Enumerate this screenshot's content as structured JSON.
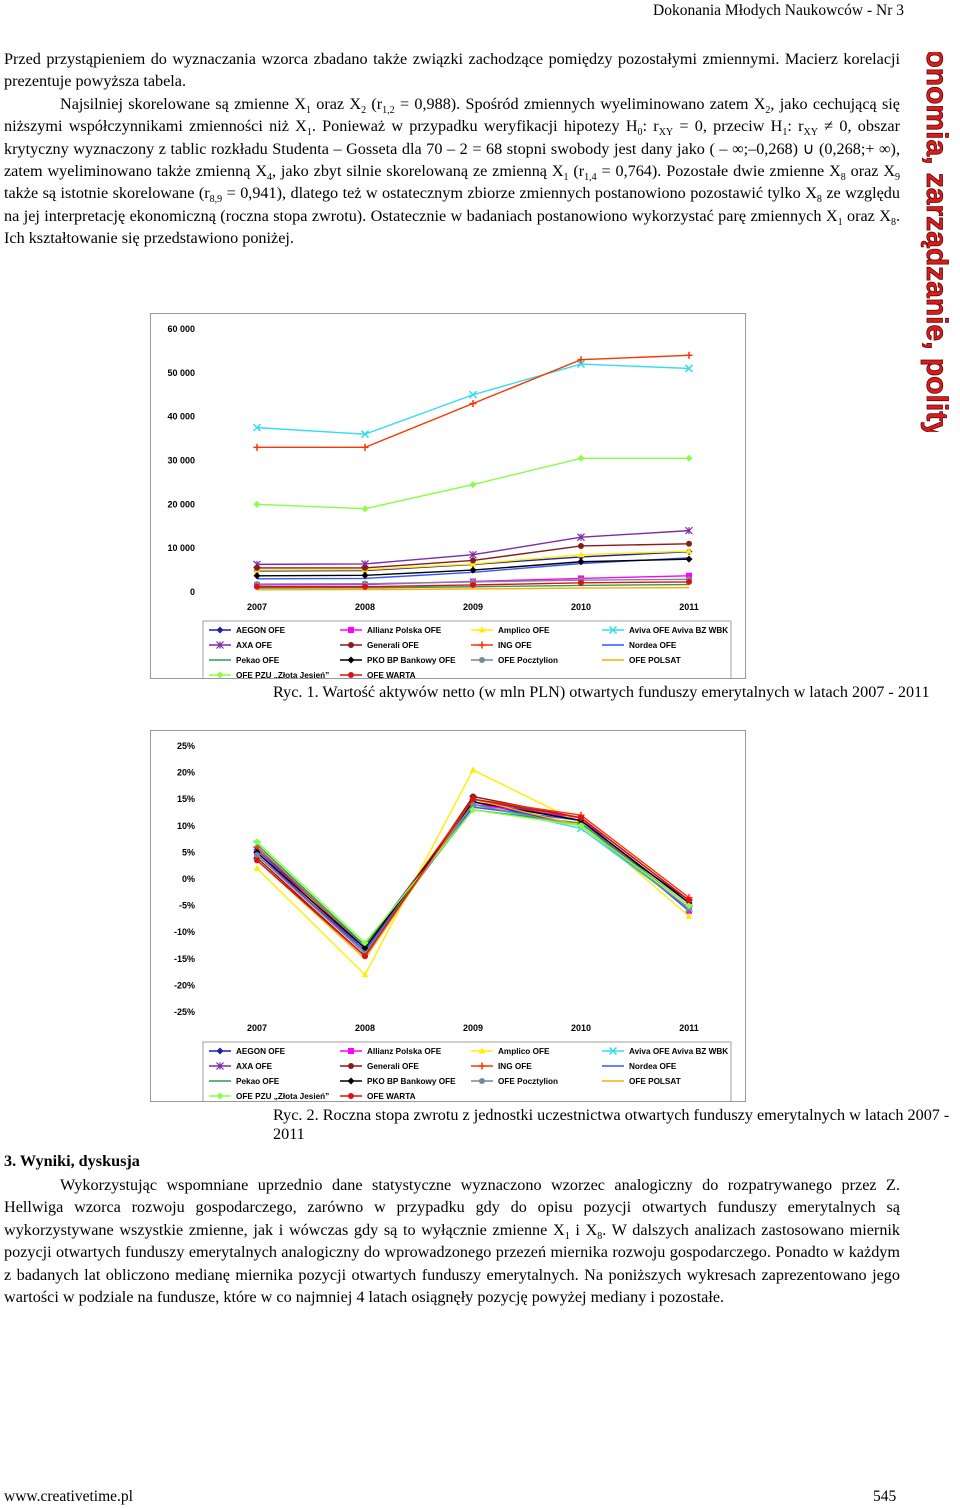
{
  "header": {
    "journal": "Dokonania Młodych Naukowców - Nr 3"
  },
  "paragraph1": {
    "l1": "Przed przystąpieniem do wyznaczania wzorca zbadano także związki zachodzące pomiędzy pozostałymi zmiennymi. Macierz korelacji prezentuje powyższa tabela.",
    "l2a": "Najsilniej skorelowane są zmienne X",
    "l2b": "1",
    "l2c": " oraz X",
    "l2d": "2",
    "l2e": " (r",
    "l2f": "1,2",
    "l2g": " = 0,988). Spośród zmiennych wyeliminowano zatem X",
    "l2h": "2",
    "l2i": ", jako cechującą się niższymi współczynnikami zmienności niż X",
    "l2j": "1",
    "l2k": ". Ponieważ w przypadku weryfikacji hipotezy H",
    "l2l": "0",
    "l2m": ": r",
    "l2n": "XY",
    "l2o": " = 0, przeciw H",
    "l2p": "1",
    "l2q": ": r",
    "l2r": "XY",
    "l2s": " ≠ 0, obszar krytyczny wyznaczony z tablic rozkładu Studenta – Gosseta dla 70 – 2 = 68 stopni swobody jest dany jako ",
    "interval": "( – ∞;–0,268) ∪ (0,268;+ ∞)",
    "l2t": ", zatem wyeliminowano także zmienną X",
    "l2u": "4",
    "l2v": ", jako zbyt silnie skorelowaną ze zmienną X",
    "l2w": "1",
    "l2x": " (r",
    "l2y": "1,4",
    "l2z": " = 0,764). Pozostałe dwie zmienne X",
    "m1": "8",
    "m2": " oraz X",
    "m3": "9",
    "m4": " także są istotnie skorelowane (r",
    "m5": "8,9",
    "m6": " = 0,941), dlatego też w ostatecznym zbiorze zmiennych postanowiono pozostawić tylko X",
    "m7": "8",
    "m8": " ze względu na jej interpretację ekonomiczną (roczna stopa zwrotu). Ostatecznie w badaniach postanowiono wykorzystać parę zmiennych X",
    "m9": "1",
    "m10": " oraz X",
    "m11": "8",
    "m12": ". Ich kształtowanie się przedstawiono poniżej."
  },
  "side_banner": {
    "text": "Ekonomia, zarządzanie, polityka",
    "color": "#d21f1f"
  },
  "legend_items": [
    {
      "name": "AEGON OFE",
      "color": "#1f1fa8",
      "marker": "diamond"
    },
    {
      "name": "Allianz Polska OFE",
      "color": "#ff00ff",
      "marker": "square"
    },
    {
      "name": "Amplico OFE",
      "color": "#ffee00",
      "marker": "triangle"
    },
    {
      "name": "Aviva OFE Aviva BZ WBK",
      "color": "#33ddee",
      "marker": "x"
    },
    {
      "name": "AXA OFE",
      "color": "#7b2aa8",
      "marker": "star"
    },
    {
      "name": "Generali OFE",
      "color": "#8b1a1a",
      "marker": "circle"
    },
    {
      "name": "ING OFE",
      "color": "#ff3300",
      "marker": "plus"
    },
    {
      "name": "Nordea OFE",
      "color": "#3355ff",
      "marker": "line"
    },
    {
      "name": "Pekao OFE",
      "color": "#2e9e4a",
      "marker": "line"
    },
    {
      "name": "PKO BP Bankowy OFE",
      "color": "#000000",
      "marker": "diamond"
    },
    {
      "name": "OFE Pocztylion",
      "color": "#778899",
      "marker": "circle"
    },
    {
      "name": "OFE POLSAT",
      "color": "#ffaa00",
      "marker": "line"
    },
    {
      "name": "OFE PZU „Złota Jesień”",
      "color": "#88ff44",
      "marker": "diamond"
    },
    {
      "name": "OFE WARTA",
      "color": "#dd1111",
      "marker": "circle"
    }
  ],
  "chart_data": [
    {
      "type": "line",
      "categories": [
        "2007",
        "2008",
        "2009",
        "2010",
        "2011"
      ],
      "yticks": [
        "0",
        "10 000",
        "20 000",
        "30 000",
        "40 000",
        "50 000",
        "60 000"
      ],
      "ylim": [
        0,
        60000
      ],
      "series": [
        {
          "name": "AEGON OFE",
          "values": [
            4800,
            4900,
            6300,
            8000,
            9200
          ]
        },
        {
          "name": "Allianz Polska OFE",
          "values": [
            1600,
            1700,
            2400,
            3100,
            3700
          ]
        },
        {
          "name": "Amplico OFE",
          "values": [
            5000,
            5100,
            6400,
            8500,
            9300
          ]
        },
        {
          "name": "Aviva OFE Aviva BZ WBK",
          "values": [
            37500,
            36000,
            45000,
            52000,
            51000
          ]
        },
        {
          "name": "AXA OFE",
          "values": [
            6300,
            6400,
            8500,
            12500,
            14000
          ]
        },
        {
          "name": "Generali OFE",
          "values": [
            5500,
            5500,
            7200,
            10500,
            11000
          ]
        },
        {
          "name": "ING OFE",
          "values": [
            33000,
            33000,
            43000,
            53000,
            54000
          ]
        },
        {
          "name": "Nordea OFE",
          "values": [
            3000,
            3100,
            4500,
            6500,
            7800
          ]
        },
        {
          "name": "Pekao OFE",
          "values": [
            900,
            950,
            1200,
            1500,
            1700
          ]
        },
        {
          "name": "PKO BP Bankowy OFE",
          "values": [
            3700,
            3800,
            5000,
            6900,
            7500
          ]
        },
        {
          "name": "OFE Pocztylion",
          "values": [
            1800,
            1900,
            2300,
            2700,
            2900
          ]
        },
        {
          "name": "OFE POLSAT",
          "values": [
            500,
            550,
            700,
            900,
            1000
          ]
        },
        {
          "name": "OFE PZU „Złota Jesień”",
          "values": [
            20000,
            19000,
            24500,
            30500,
            30500
          ]
        },
        {
          "name": "OFE WARTA",
          "values": [
            1200,
            1200,
            1600,
            2100,
            2300
          ]
        }
      ]
    },
    {
      "type": "line",
      "categories": [
        "2007",
        "2008",
        "2009",
        "2010",
        "2011"
      ],
      "yticks": [
        "25%",
        "20%",
        "15%",
        "10%",
        "5%",
        "0%",
        "-5%",
        "-10%",
        "-15%",
        "-20%",
        "-25%"
      ],
      "ylim": [
        -0.25,
        0.25
      ],
      "series": [
        {
          "name": "AEGON OFE",
          "values": [
            0.055,
            -0.125,
            0.145,
            0.1,
            -0.04
          ]
        },
        {
          "name": "Allianz Polska OFE",
          "values": [
            0.05,
            -0.14,
            0.14,
            0.115,
            -0.06
          ]
        },
        {
          "name": "Amplico OFE",
          "values": [
            0.02,
            -0.18,
            0.205,
            0.105,
            -0.07
          ]
        },
        {
          "name": "Aviva OFE Aviva BZ WBK",
          "values": [
            0.065,
            -0.13,
            0.14,
            0.095,
            -0.055
          ]
        },
        {
          "name": "AXA OFE",
          "values": [
            0.045,
            -0.135,
            0.15,
            0.11,
            -0.045
          ]
        },
        {
          "name": "Generali OFE",
          "values": [
            0.04,
            -0.145,
            0.155,
            0.115,
            -0.04
          ]
        },
        {
          "name": "ING OFE",
          "values": [
            0.06,
            -0.13,
            0.15,
            0.12,
            -0.035
          ]
        },
        {
          "name": "Nordea OFE",
          "values": [
            0.055,
            -0.135,
            0.135,
            0.11,
            -0.06
          ]
        },
        {
          "name": "Pekao OFE",
          "values": [
            0.065,
            -0.125,
            0.13,
            0.105,
            -0.05
          ]
        },
        {
          "name": "PKO BP Bankowy OFE",
          "values": [
            0.05,
            -0.13,
            0.145,
            0.11,
            -0.045
          ]
        },
        {
          "name": "OFE Pocztylion",
          "values": [
            0.045,
            -0.14,
            0.14,
            0.1,
            -0.055
          ]
        },
        {
          "name": "OFE POLSAT",
          "values": [
            0.035,
            -0.15,
            0.15,
            0.1,
            -0.05
          ]
        },
        {
          "name": "OFE PZU „Złota Jesień”",
          "values": [
            0.07,
            -0.12,
            0.13,
            0.1,
            -0.05
          ]
        },
        {
          "name": "OFE WARTA",
          "values": [
            0.035,
            -0.145,
            0.15,
            0.115,
            -0.04
          ]
        }
      ]
    }
  ],
  "captions": {
    "fig1": "Ryc. 1. Wartość aktywów netto (w mln PLN) otwartych funduszy emerytalnych w latach 2007 - 2011",
    "fig2": "Ryc. 2. Roczna stopa zwrotu z jednostki uczestnictwa otwartych funduszy emerytalnych w latach 2007 - 2011"
  },
  "section": {
    "title": "3. Wyniki, dyskusja",
    "p1": "Wykorzystując wspomniane uprzednio dane statystyczne wyznaczono wzorzec analogiczny do rozpatrywanego przez Z. Hellwiga wzorca rozwoju gospodarczego, zarówno w przypadku gdy do opisu pozycji otwartych funduszy emerytalnych są wykorzystywane wszystkie zmienne, jak i wówczas gdy są to wyłącznie zmienne X",
    "p1s1": "1",
    "p1b": " i X",
    "p1s2": "8",
    "p1c": ". W dalszych analizach zastosowano miernik pozycji otwartych funduszy emerytalnych analogiczny do wprowadzonego przezeń miernika rozwoju gospodarczego. Ponadto w każdym z badanych lat obliczono medianę miernika pozycji otwartych funduszy emerytalnych. Na poniższych wykresach zaprezentowano jego wartości w podziale na fundusze, które w co najmniej 4 latach osiągnęły pozycję powyżej mediany i pozostałe."
  },
  "footer": {
    "url": "www.creativetime.pl",
    "page": "545"
  }
}
